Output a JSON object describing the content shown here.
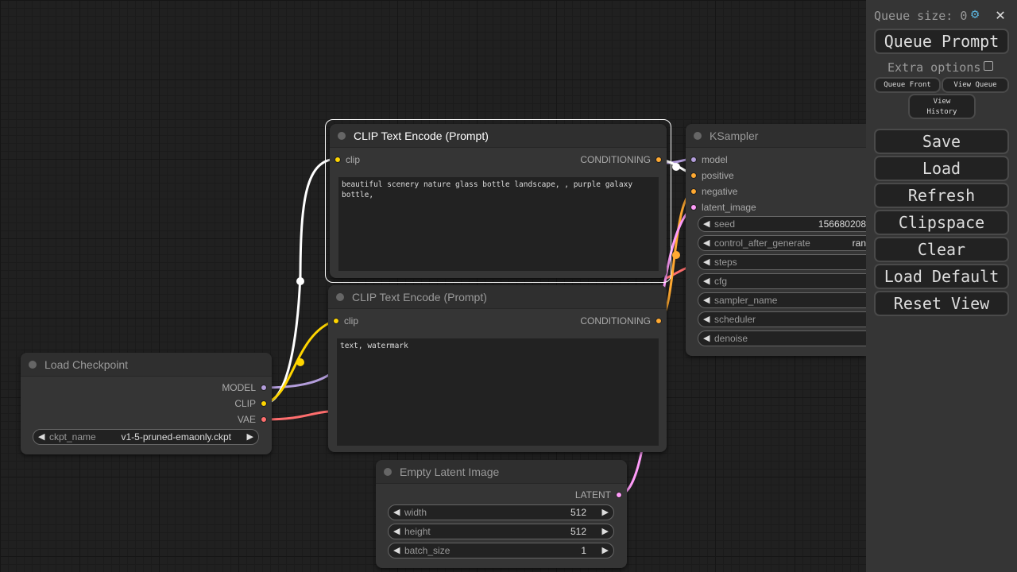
{
  "nodes": {
    "clip1": {
      "title": "CLIP Text Encode (Prompt)",
      "input": "clip",
      "output": "CONDITIONING",
      "text": "beautiful scenery nature glass bottle landscape, , purple galaxy bottle,"
    },
    "clip2": {
      "title": "CLIP Text Encode (Prompt)",
      "input": "clip",
      "output": "CONDITIONING",
      "text": "text, watermark"
    },
    "checkpoint": {
      "title": "Load Checkpoint",
      "outputs": [
        "MODEL",
        "CLIP",
        "VAE"
      ],
      "widget": {
        "name": "ckpt_name",
        "value": "v1-5-pruned-emaonly.ckpt"
      }
    },
    "latent": {
      "title": "Empty Latent Image",
      "output": "LATENT",
      "widgets": [
        {
          "name": "width",
          "value": "512"
        },
        {
          "name": "height",
          "value": "512"
        },
        {
          "name": "batch_size",
          "value": "1"
        }
      ]
    },
    "ksampler": {
      "title": "KSampler",
      "inputs": [
        "model",
        "positive",
        "negative",
        "latent_image"
      ],
      "widgets": [
        {
          "name": "seed",
          "value": "156680208"
        },
        {
          "name": "control_after_generate",
          "value": "ran"
        },
        {
          "name": "steps",
          "value": ""
        },
        {
          "name": "cfg",
          "value": ""
        },
        {
          "name": "sampler_name",
          "value": ""
        },
        {
          "name": "scheduler",
          "value": ""
        },
        {
          "name": "denoise",
          "value": ""
        }
      ]
    }
  },
  "slot_colors": {
    "model": "#b39ddb",
    "clip": "#ffd500",
    "vae": "#ff6e6e",
    "conditioning": "#ffa931",
    "latent": "#ff9cf9"
  },
  "sidebar": {
    "queue_size": "Queue size: 0",
    "settings_icon": "gear-icon",
    "close_icon": "close-icon",
    "queue_prompt": "Queue Prompt",
    "extra_options": "Extra options",
    "queue_front": "Queue Front",
    "view_queue": "View Queue",
    "view_history": "View History",
    "buttons": [
      "Save",
      "Load",
      "Refresh",
      "Clipspace",
      "Clear",
      "Load Default",
      "Reset View"
    ]
  }
}
